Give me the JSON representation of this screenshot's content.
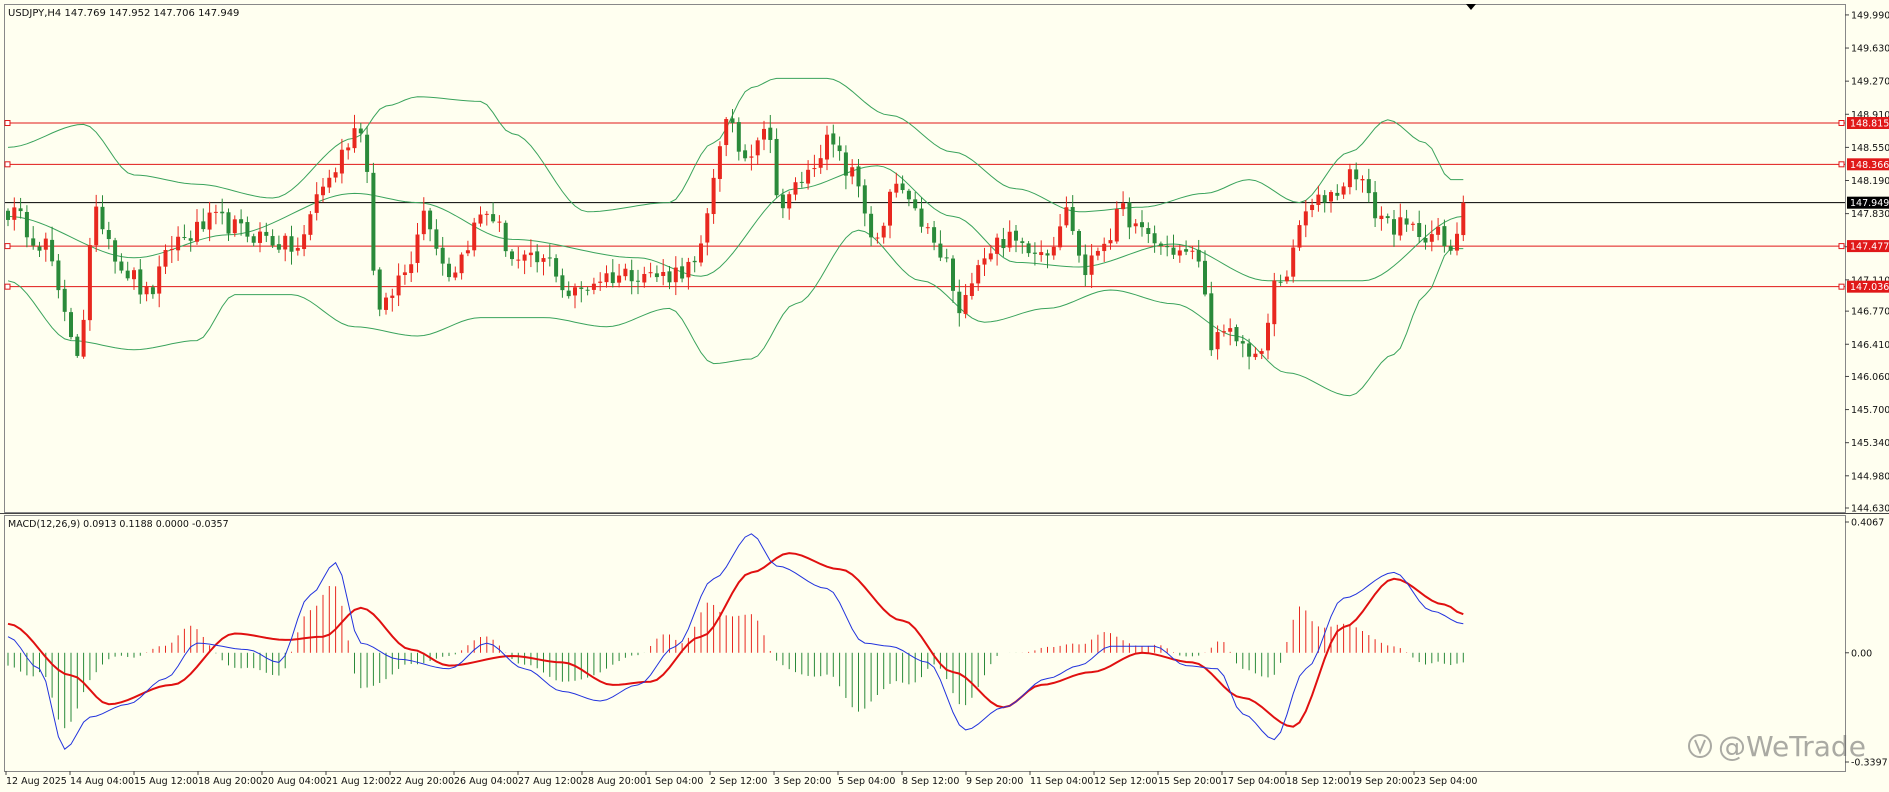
{
  "header": {
    "symbol_info": "USDJPY,H4  147.769 147.952 147.706 147.949",
    "macd_info": "MACD(12,26,9) 0.0913 0.1188 0.0000 -0.0357"
  },
  "watermark": "@WeTrade",
  "colors": {
    "background": "#fffff0",
    "bull": "#e8281f",
    "bear": "#2a8a3a",
    "bands": "#3aa35c",
    "level_line": "#e01818",
    "current_line": "#000000",
    "macd_line": "#2233dd",
    "signal_line": "#e01010",
    "hist_pos": "#e8281f",
    "hist_neg": "#2a8a3a"
  },
  "chart_data": [
    {
      "type": "candlestick",
      "title": "USDJPY,H4",
      "ylim": [
        144.63,
        150.0
      ],
      "y_ticks": [
        "149.990",
        "149.630",
        "149.270",
        "148.910",
        "148.550",
        "148.190",
        "147.830",
        "147.470",
        "147.110",
        "146.770",
        "146.410",
        "146.060",
        "145.700",
        "145.340",
        "144.980",
        "144.630"
      ],
      "x_ticks": [
        "12 Aug 2025",
        "14 Aug 04:00",
        "15 Aug 12:00",
        "18 Aug 20:00",
        "20 Aug 04:00",
        "21 Aug 12:00",
        "22 Aug 20:00",
        "26 Aug 04:00",
        "27 Aug 12:00",
        "28 Aug 20:00",
        "1 Sep 04:00",
        "2 Sep 12:00",
        "3 Sep 20:00",
        "5 Sep 04:00",
        "8 Sep 12:00",
        "9 Sep 20:00",
        "11 Sep 04:00",
        "12 Sep 12:00",
        "15 Sep 20:00",
        "17 Sep 04:00",
        "18 Sep 12:00",
        "19 Sep 20:00",
        "23 Sep 04:00"
      ],
      "levels": [
        {
          "label": "148.815",
          "value": 148.815
        },
        {
          "label": "148.366",
          "value": 148.366
        },
        {
          "label": "147.477",
          "value": 147.477
        },
        {
          "label": "147.036",
          "value": 147.036
        }
      ],
      "current_price": {
        "label": "147.949",
        "value": 147.949
      },
      "close_anchors": [
        [
          0,
          147.85
        ],
        [
          6,
          147.5
        ],
        [
          9,
          146.7
        ],
        [
          11,
          146.35
        ],
        [
          14,
          147.8
        ],
        [
          19,
          147.2
        ],
        [
          22,
          146.95
        ],
        [
          27,
          147.55
        ],
        [
          33,
          147.75
        ],
        [
          39,
          147.6
        ],
        [
          46,
          147.45
        ],
        [
          50,
          148.15
        ],
        [
          56,
          148.8
        ],
        [
          59,
          146.75
        ],
        [
          63,
          147.2
        ],
        [
          66,
          147.85
        ],
        [
          70,
          147.2
        ],
        [
          76,
          147.85
        ],
        [
          81,
          147.3
        ],
        [
          86,
          147.3
        ],
        [
          89,
          146.95
        ],
        [
          95,
          147.15
        ],
        [
          100,
          147.2
        ],
        [
          103,
          147.15
        ],
        [
          109,
          147.25
        ],
        [
          114,
          148.8
        ],
        [
          117,
          148.45
        ],
        [
          120,
          148.8
        ],
        [
          123,
          147.9
        ],
        [
          126,
          148.2
        ],
        [
          130,
          148.6
        ],
        [
          134,
          148.25
        ],
        [
          138,
          147.5
        ],
        [
          141,
          148.15
        ],
        [
          144,
          147.8
        ],
        [
          149,
          147.3
        ],
        [
          151,
          146.7
        ],
        [
          154,
          147.35
        ],
        [
          158,
          147.55
        ],
        [
          161,
          147.5
        ],
        [
          165,
          147.45
        ],
        [
          168,
          147.85
        ],
        [
          171,
          147.2
        ],
        [
          174,
          147.55
        ],
        [
          177,
          147.85
        ],
        [
          180,
          147.6
        ],
        [
          184,
          147.45
        ],
        [
          189,
          147.35
        ],
        [
          191,
          146.45
        ],
        [
          194,
          146.5
        ],
        [
          197,
          146.35
        ],
        [
          199,
          146.25
        ],
        [
          201,
          147.05
        ],
        [
          203,
          147.2
        ],
        [
          206,
          147.85
        ],
        [
          210,
          148.05
        ],
        [
          214,
          148.3
        ],
        [
          217,
          147.85
        ],
        [
          220,
          147.7
        ],
        [
          223,
          147.65
        ],
        [
          227,
          147.6
        ],
        [
          229,
          147.35
        ],
        [
          231,
          147.95
        ]
      ],
      "bands_anchors": {
        "mid": [
          [
            0,
            147.8
          ],
          [
            20,
            147.35
          ],
          [
            35,
            147.6
          ],
          [
            55,
            148.05
          ],
          [
            65,
            147.95
          ],
          [
            80,
            147.55
          ],
          [
            100,
            147.35
          ],
          [
            110,
            147.15
          ],
          [
            125,
            148.1
          ],
          [
            138,
            148.35
          ],
          [
            150,
            147.8
          ],
          [
            160,
            147.3
          ],
          [
            170,
            147.25
          ],
          [
            185,
            147.5
          ],
          [
            200,
            147.1
          ],
          [
            215,
            147.1
          ],
          [
            231,
            147.8
          ]
        ],
        "upper": [
          [
            0,
            148.55
          ],
          [
            12,
            148.8
          ],
          [
            20,
            148.25
          ],
          [
            30,
            148.15
          ],
          [
            42,
            148.0
          ],
          [
            55,
            148.65
          ],
          [
            60,
            149.0
          ],
          [
            65,
            149.1
          ],
          [
            75,
            149.05
          ],
          [
            80,
            148.7
          ],
          [
            92,
            147.85
          ],
          [
            105,
            147.95
          ],
          [
            112,
            148.6
          ],
          [
            118,
            149.2
          ],
          [
            122,
            149.3
          ],
          [
            130,
            149.3
          ],
          [
            140,
            148.9
          ],
          [
            150,
            148.5
          ],
          [
            160,
            148.1
          ],
          [
            170,
            147.85
          ],
          [
            180,
            147.9
          ],
          [
            190,
            148.05
          ],
          [
            197,
            148.2
          ],
          [
            205,
            147.95
          ],
          [
            213,
            148.5
          ],
          [
            219,
            148.85
          ],
          [
            225,
            148.6
          ],
          [
            229,
            148.2
          ],
          [
            231,
            148.2
          ]
        ],
        "lower": [
          [
            0,
            147.1
          ],
          [
            10,
            146.45
          ],
          [
            20,
            146.35
          ],
          [
            30,
            146.45
          ],
          [
            36,
            146.95
          ],
          [
            45,
            146.95
          ],
          [
            55,
            146.6
          ],
          [
            65,
            146.5
          ],
          [
            75,
            146.7
          ],
          [
            85,
            146.7
          ],
          [
            95,
            146.6
          ],
          [
            105,
            146.8
          ],
          [
            112,
            146.2
          ],
          [
            118,
            146.25
          ],
          [
            125,
            146.85
          ],
          [
            135,
            147.65
          ],
          [
            145,
            147.1
          ],
          [
            155,
            146.65
          ],
          [
            165,
            146.8
          ],
          [
            175,
            147.0
          ],
          [
            185,
            146.85
          ],
          [
            195,
            146.5
          ],
          [
            203,
            146.1
          ],
          [
            213,
            145.85
          ],
          [
            220,
            146.3
          ],
          [
            225,
            146.95
          ],
          [
            229,
            147.45
          ],
          [
            231,
            147.45
          ]
        ]
      }
    },
    {
      "type": "bar",
      "title": "MACD(12,26,9)",
      "ylim": [
        -0.3397,
        0.4067
      ],
      "y_ticks": [
        "0.4067",
        "0.00",
        "-0.3397"
      ],
      "macd_anchors": [
        [
          0,
          0.05
        ],
        [
          5,
          -0.05
        ],
        [
          9,
          -0.3
        ],
        [
          13,
          -0.2
        ],
        [
          19,
          -0.16
        ],
        [
          25,
          -0.08
        ],
        [
          30,
          0.03
        ],
        [
          38,
          0.01
        ],
        [
          43,
          -0.03
        ],
        [
          48,
          0.18
        ],
        [
          52,
          0.28
        ],
        [
          56,
          0.03
        ],
        [
          62,
          -0.02
        ],
        [
          70,
          -0.05
        ],
        [
          76,
          0.03
        ],
        [
          82,
          -0.05
        ],
        [
          88,
          -0.12
        ],
        [
          94,
          -0.15
        ],
        [
          100,
          -0.1
        ],
        [
          106,
          0.02
        ],
        [
          112,
          0.23
        ],
        [
          118,
          0.37
        ],
        [
          122,
          0.27
        ],
        [
          130,
          0.2
        ],
        [
          136,
          0.03
        ],
        [
          140,
          0.02
        ],
        [
          146,
          -0.03
        ],
        [
          152,
          -0.24
        ],
        [
          158,
          -0.17
        ],
        [
          165,
          -0.08
        ],
        [
          170,
          -0.04
        ],
        [
          175,
          0.02
        ],
        [
          182,
          0.02
        ],
        [
          187,
          -0.04
        ],
        [
          192,
          -0.05
        ],
        [
          196,
          -0.19
        ],
        [
          201,
          -0.27
        ],
        [
          206,
          -0.05
        ],
        [
          212,
          0.17
        ],
        [
          220,
          0.25
        ],
        [
          226,
          0.13
        ],
        [
          231,
          0.09
        ]
      ],
      "signal_anchors": [
        [
          0,
          0.09
        ],
        [
          10,
          -0.07
        ],
        [
          16,
          -0.16
        ],
        [
          26,
          -0.1
        ],
        [
          36,
          0.06
        ],
        [
          44,
          0.04
        ],
        [
          50,
          0.05
        ],
        [
          56,
          0.14
        ],
        [
          64,
          0.01
        ],
        [
          70,
          -0.04
        ],
        [
          80,
          -0.01
        ],
        [
          88,
          -0.03
        ],
        [
          96,
          -0.1
        ],
        [
          102,
          -0.09
        ],
        [
          110,
          0.05
        ],
        [
          118,
          0.25
        ],
        [
          124,
          0.31
        ],
        [
          132,
          0.26
        ],
        [
          142,
          0.1
        ],
        [
          150,
          -0.06
        ],
        [
          158,
          -0.17
        ],
        [
          164,
          -0.1
        ],
        [
          172,
          -0.06
        ],
        [
          180,
          0.0
        ],
        [
          188,
          -0.03
        ],
        [
          196,
          -0.14
        ],
        [
          204,
          -0.23
        ],
        [
          212,
          0.08
        ],
        [
          220,
          0.23
        ],
        [
          228,
          0.15
        ],
        [
          231,
          0.12
        ]
      ]
    }
  ]
}
